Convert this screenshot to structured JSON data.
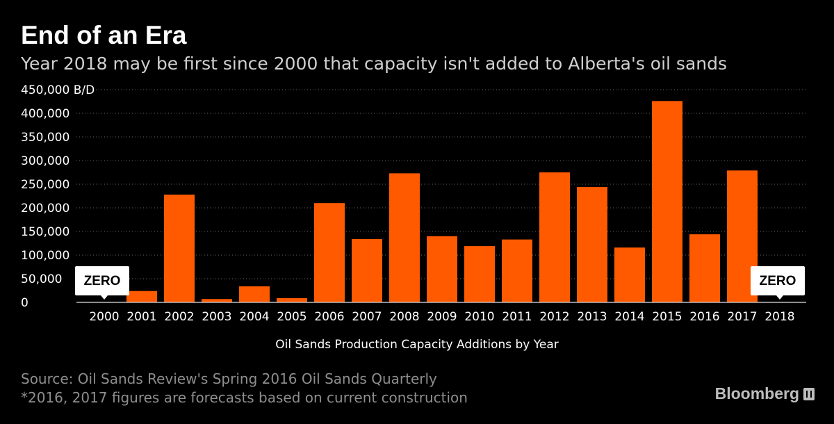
{
  "header": {
    "title": "End of an Era",
    "subtitle": "Year 2018 may be first since 2000 that capacity isn't added to Alberta's oil sands"
  },
  "footer": {
    "source": "Source: Oil Sands Review's Spring 2016 Oil Sands Quarterly",
    "note": "*2016, 2017 figures are forecasts based on current construction",
    "brand": "Bloomberg"
  },
  "colors": {
    "bar": "#ff5a00",
    "background": "#000000",
    "grid": "#666666",
    "callout_bg": "#ffffff"
  },
  "chart_data": {
    "type": "bar",
    "title": "End of an Era",
    "subtitle": "Year 2018 may be first since 2000 that capacity isn't added to Alberta's oil sands",
    "xlabel": "Oil Sands Production Capacity Additions by Year",
    "ylabel": "",
    "y_unit": "B/D",
    "ylim": [
      0,
      450000
    ],
    "yticks": [
      0,
      50000,
      100000,
      150000,
      200000,
      250000,
      300000,
      350000,
      400000,
      450000
    ],
    "ytick_labels": [
      "0",
      "50,000",
      "100,000",
      "150,000",
      "200,000",
      "250,000",
      "300,000",
      "350,000",
      "400,000",
      "450,000 B/D"
    ],
    "grid": true,
    "categories": [
      "2000",
      "2001",
      "2002",
      "2003",
      "2004",
      "2005",
      "2006",
      "2007",
      "2008",
      "2009",
      "2010",
      "2011",
      "2012",
      "2013",
      "2014",
      "2015",
      "2016",
      "2017",
      "2018"
    ],
    "values": [
      0,
      24000,
      228000,
      7000,
      34000,
      9000,
      210000,
      134000,
      273000,
      140000,
      119000,
      133000,
      275000,
      244000,
      116000,
      426000,
      144000,
      279000,
      0
    ],
    "annotations": [
      {
        "category": "2000",
        "text": "ZERO"
      },
      {
        "category": "2018",
        "text": "ZERO"
      }
    ]
  }
}
